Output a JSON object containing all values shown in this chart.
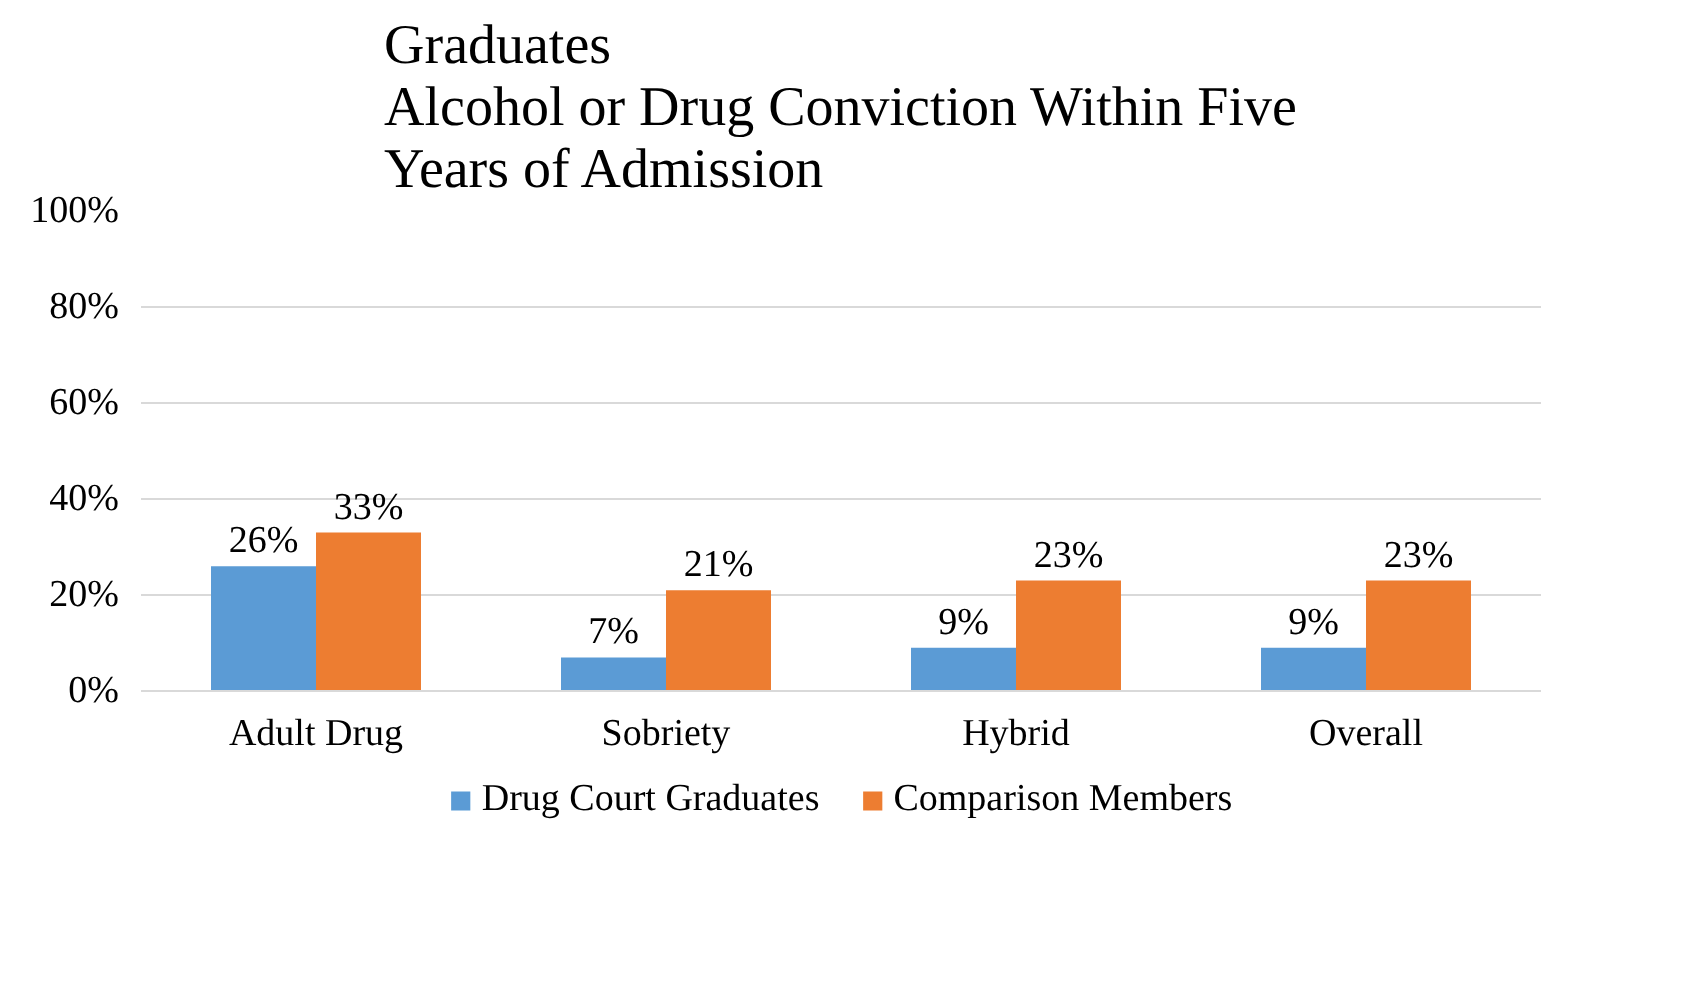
{
  "chart_data": {
    "type": "bar",
    "title": "Graduates\nAlcohol or Drug Conviction Within Five\nYears of Admission",
    "categories": [
      "Adult Drug",
      "Sobriety",
      "Hybrid",
      "Overall"
    ],
    "series": [
      {
        "name": "Drug Court Graduates",
        "color": "#5b9bd5",
        "values": [
          26,
          7,
          9,
          9
        ],
        "value_labels": [
          "26%",
          "7%",
          "9%",
          "9%"
        ]
      },
      {
        "name": "Comparison Members",
        "color": "#ed7d31",
        "values": [
          33,
          21,
          23,
          23
        ],
        "value_labels": [
          "33%",
          "21%",
          "23%",
          "23%"
        ]
      }
    ],
    "ylim": [
      0,
      100
    ],
    "yticks": [
      {
        "value": 0,
        "label": "0%"
      },
      {
        "value": 20,
        "label": "20%"
      },
      {
        "value": 40,
        "label": "40%"
      },
      {
        "value": 60,
        "label": "60%"
      },
      {
        "value": 80,
        "label": "80%"
      },
      {
        "value": 100,
        "label": "100%"
      }
    ],
    "grid": "y",
    "legend": "bottom"
  }
}
